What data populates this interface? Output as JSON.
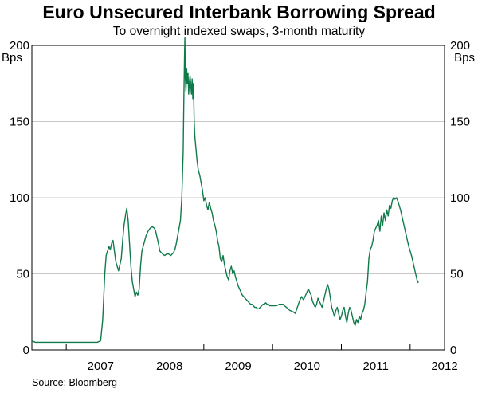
{
  "chart_data": {
    "type": "line",
    "title": "Euro Unsecured Interbank Borrowing Spread",
    "subtitle": "To overnight indexed swaps, 3-month maturity",
    "source": "Source: Bloomberg",
    "ylabel_left": "Bps",
    "ylabel_right": "Bps",
    "ylim": [
      0,
      200
    ],
    "yticks": [
      "0",
      "50",
      "100",
      "150",
      "200"
    ],
    "xlim": [
      2006.5,
      2012.5
    ],
    "xticks": [
      "2007",
      "2008",
      "2009",
      "2010",
      "2011",
      "2012"
    ],
    "grid": true,
    "line_color": "#0f7a4a",
    "series": [
      {
        "values": [
          [
            2006.5,
            6
          ],
          [
            2006.55,
            5
          ],
          [
            2006.6,
            5
          ],
          [
            2006.65,
            5
          ],
          [
            2006.7,
            5
          ],
          [
            2006.75,
            5
          ],
          [
            2006.8,
            5
          ],
          [
            2006.85,
            5
          ],
          [
            2006.9,
            5
          ],
          [
            2006.95,
            5
          ],
          [
            2007.0,
            5
          ],
          [
            2007.05,
            5
          ],
          [
            2007.1,
            5
          ],
          [
            2007.15,
            5
          ],
          [
            2007.2,
            5
          ],
          [
            2007.25,
            5
          ],
          [
            2007.3,
            5
          ],
          [
            2007.35,
            5
          ],
          [
            2007.4,
            5
          ],
          [
            2007.45,
            5
          ],
          [
            2007.5,
            6
          ],
          [
            2007.53,
            20
          ],
          [
            2007.56,
            50
          ],
          [
            2007.58,
            62
          ],
          [
            2007.6,
            65
          ],
          [
            2007.62,
            68
          ],
          [
            2007.64,
            66
          ],
          [
            2007.66,
            70
          ],
          [
            2007.68,
            72
          ],
          [
            2007.7,
            65
          ],
          [
            2007.72,
            58
          ],
          [
            2007.74,
            55
          ],
          [
            2007.76,
            52
          ],
          [
            2007.78,
            56
          ],
          [
            2007.8,
            60
          ],
          [
            2007.82,
            72
          ],
          [
            2007.84,
            82
          ],
          [
            2007.86,
            88
          ],
          [
            2007.88,
            93
          ],
          [
            2007.9,
            85
          ],
          [
            2007.92,
            70
          ],
          [
            2007.94,
            55
          ],
          [
            2007.96,
            45
          ],
          [
            2007.98,
            40
          ],
          [
            2008.0,
            35
          ],
          [
            2008.02,
            38
          ],
          [
            2008.04,
            36
          ],
          [
            2008.06,
            40
          ],
          [
            2008.08,
            55
          ],
          [
            2008.1,
            65
          ],
          [
            2008.13,
            70
          ],
          [
            2008.16,
            75
          ],
          [
            2008.19,
            78
          ],
          [
            2008.22,
            80
          ],
          [
            2008.25,
            81
          ],
          [
            2008.28,
            80
          ],
          [
            2008.3,
            78
          ],
          [
            2008.32,
            74
          ],
          [
            2008.34,
            70
          ],
          [
            2008.36,
            65
          ],
          [
            2008.38,
            64
          ],
          [
            2008.4,
            63
          ],
          [
            2008.43,
            62
          ],
          [
            2008.46,
            63
          ],
          [
            2008.49,
            63
          ],
          [
            2008.52,
            62
          ],
          [
            2008.54,
            63
          ],
          [
            2008.56,
            64
          ],
          [
            2008.58,
            66
          ],
          [
            2008.6,
            70
          ],
          [
            2008.62,
            75
          ],
          [
            2008.64,
            80
          ],
          [
            2008.66,
            85
          ],
          [
            2008.68,
            100
          ],
          [
            2008.7,
            130
          ],
          [
            2008.71,
            165
          ],
          [
            2008.72,
            195
          ],
          [
            2008.725,
            205
          ],
          [
            2008.73,
            180
          ],
          [
            2008.74,
            170
          ],
          [
            2008.75,
            185
          ],
          [
            2008.76,
            175
          ],
          [
            2008.77,
            182
          ],
          [
            2008.78,
            168
          ],
          [
            2008.79,
            176
          ],
          [
            2008.8,
            180
          ],
          [
            2008.82,
            168
          ],
          [
            2008.83,
            178
          ],
          [
            2008.84,
            165
          ],
          [
            2008.85,
            175
          ],
          [
            2008.86,
            150
          ],
          [
            2008.87,
            140
          ],
          [
            2008.88,
            135
          ],
          [
            2008.89,
            130
          ],
          [
            2008.9,
            125
          ],
          [
            2008.92,
            118
          ],
          [
            2008.94,
            115
          ],
          [
            2008.96,
            110
          ],
          [
            2008.98,
            105
          ],
          [
            2009.0,
            98
          ],
          [
            2009.02,
            100
          ],
          [
            2009.04,
            95
          ],
          [
            2009.06,
            92
          ],
          [
            2009.08,
            97
          ],
          [
            2009.1,
            93
          ],
          [
            2009.12,
            90
          ],
          [
            2009.14,
            85
          ],
          [
            2009.16,
            82
          ],
          [
            2009.18,
            78
          ],
          [
            2009.2,
            72
          ],
          [
            2009.22,
            68
          ],
          [
            2009.24,
            60
          ],
          [
            2009.26,
            58
          ],
          [
            2009.28,
            62
          ],
          [
            2009.3,
            56
          ],
          [
            2009.32,
            52
          ],
          [
            2009.34,
            48
          ],
          [
            2009.36,
            46
          ],
          [
            2009.38,
            52
          ],
          [
            2009.4,
            55
          ],
          [
            2009.42,
            50
          ],
          [
            2009.44,
            52
          ],
          [
            2009.46,
            48
          ],
          [
            2009.48,
            45
          ],
          [
            2009.5,
            42
          ],
          [
            2009.52,
            40
          ],
          [
            2009.54,
            38
          ],
          [
            2009.56,
            36
          ],
          [
            2009.58,
            35
          ],
          [
            2009.6,
            34
          ],
          [
            2009.62,
            33
          ],
          [
            2009.64,
            32
          ],
          [
            2009.66,
            31
          ],
          [
            2009.68,
            30
          ],
          [
            2009.7,
            30
          ],
          [
            2009.72,
            29
          ],
          [
            2009.74,
            28
          ],
          [
            2009.76,
            28
          ],
          [
            2009.78,
            27
          ],
          [
            2009.8,
            27
          ],
          [
            2009.82,
            28
          ],
          [
            2009.84,
            29
          ],
          [
            2009.86,
            30
          ],
          [
            2009.88,
            30
          ],
          [
            2009.9,
            31
          ],
          [
            2009.92,
            30
          ],
          [
            2009.94,
            30
          ],
          [
            2009.96,
            29
          ],
          [
            2009.98,
            29
          ],
          [
            2010.0,
            29
          ],
          [
            2010.05,
            29
          ],
          [
            2010.1,
            30
          ],
          [
            2010.15,
            30
          ],
          [
            2010.2,
            28
          ],
          [
            2010.25,
            26
          ],
          [
            2010.3,
            25
          ],
          [
            2010.33,
            24
          ],
          [
            2010.36,
            28
          ],
          [
            2010.39,
            32
          ],
          [
            2010.42,
            35
          ],
          [
            2010.45,
            33
          ],
          [
            2010.48,
            36
          ],
          [
            2010.5,
            38
          ],
          [
            2010.52,
            40
          ],
          [
            2010.54,
            38
          ],
          [
            2010.56,
            36
          ],
          [
            2010.58,
            32
          ],
          [
            2010.6,
            30
          ],
          [
            2010.62,
            28
          ],
          [
            2010.64,
            30
          ],
          [
            2010.66,
            34
          ],
          [
            2010.68,
            32
          ],
          [
            2010.7,
            30
          ],
          [
            2010.72,
            28
          ],
          [
            2010.74,
            32
          ],
          [
            2010.76,
            36
          ],
          [
            2010.78,
            40
          ],
          [
            2010.8,
            43
          ],
          [
            2010.82,
            40
          ],
          [
            2010.84,
            34
          ],
          [
            2010.86,
            28
          ],
          [
            2010.88,
            25
          ],
          [
            2010.9,
            22
          ],
          [
            2010.92,
            26
          ],
          [
            2010.94,
            28
          ],
          [
            2010.96,
            24
          ],
          [
            2010.98,
            20
          ],
          [
            2011.0,
            22
          ],
          [
            2011.02,
            26
          ],
          [
            2011.04,
            28
          ],
          [
            2011.06,
            22
          ],
          [
            2011.08,
            18
          ],
          [
            2011.1,
            24
          ],
          [
            2011.12,
            28
          ],
          [
            2011.14,
            26
          ],
          [
            2011.16,
            22
          ],
          [
            2011.18,
            18
          ],
          [
            2011.2,
            16
          ],
          [
            2011.22,
            20
          ],
          [
            2011.24,
            18
          ],
          [
            2011.26,
            22
          ],
          [
            2011.28,
            20
          ],
          [
            2011.3,
            24
          ],
          [
            2011.32,
            26
          ],
          [
            2011.34,
            30
          ],
          [
            2011.36,
            38
          ],
          [
            2011.38,
            45
          ],
          [
            2011.4,
            60
          ],
          [
            2011.42,
            66
          ],
          [
            2011.44,
            68
          ],
          [
            2011.46,
            72
          ],
          [
            2011.48,
            78
          ],
          [
            2011.5,
            80
          ],
          [
            2011.52,
            82
          ],
          [
            2011.54,
            85
          ],
          [
            2011.56,
            78
          ],
          [
            2011.58,
            88
          ],
          [
            2011.6,
            82
          ],
          [
            2011.62,
            90
          ],
          [
            2011.64,
            85
          ],
          [
            2011.66,
            92
          ],
          [
            2011.68,
            88
          ],
          [
            2011.7,
            95
          ],
          [
            2011.72,
            93
          ],
          [
            2011.74,
            98
          ],
          [
            2011.76,
            100
          ],
          [
            2011.78,
            99
          ],
          [
            2011.8,
            100
          ],
          [
            2011.82,
            98
          ],
          [
            2011.84,
            95
          ],
          [
            2011.86,
            92
          ],
          [
            2011.88,
            88
          ],
          [
            2011.9,
            84
          ],
          [
            2011.92,
            80
          ],
          [
            2011.94,
            76
          ],
          [
            2011.96,
            72
          ],
          [
            2011.98,
            68
          ],
          [
            2012.0,
            65
          ],
          [
            2012.02,
            62
          ],
          [
            2012.04,
            58
          ],
          [
            2012.06,
            54
          ],
          [
            2012.08,
            50
          ],
          [
            2012.1,
            46
          ],
          [
            2012.12,
            44
          ]
        ]
      }
    ]
  }
}
